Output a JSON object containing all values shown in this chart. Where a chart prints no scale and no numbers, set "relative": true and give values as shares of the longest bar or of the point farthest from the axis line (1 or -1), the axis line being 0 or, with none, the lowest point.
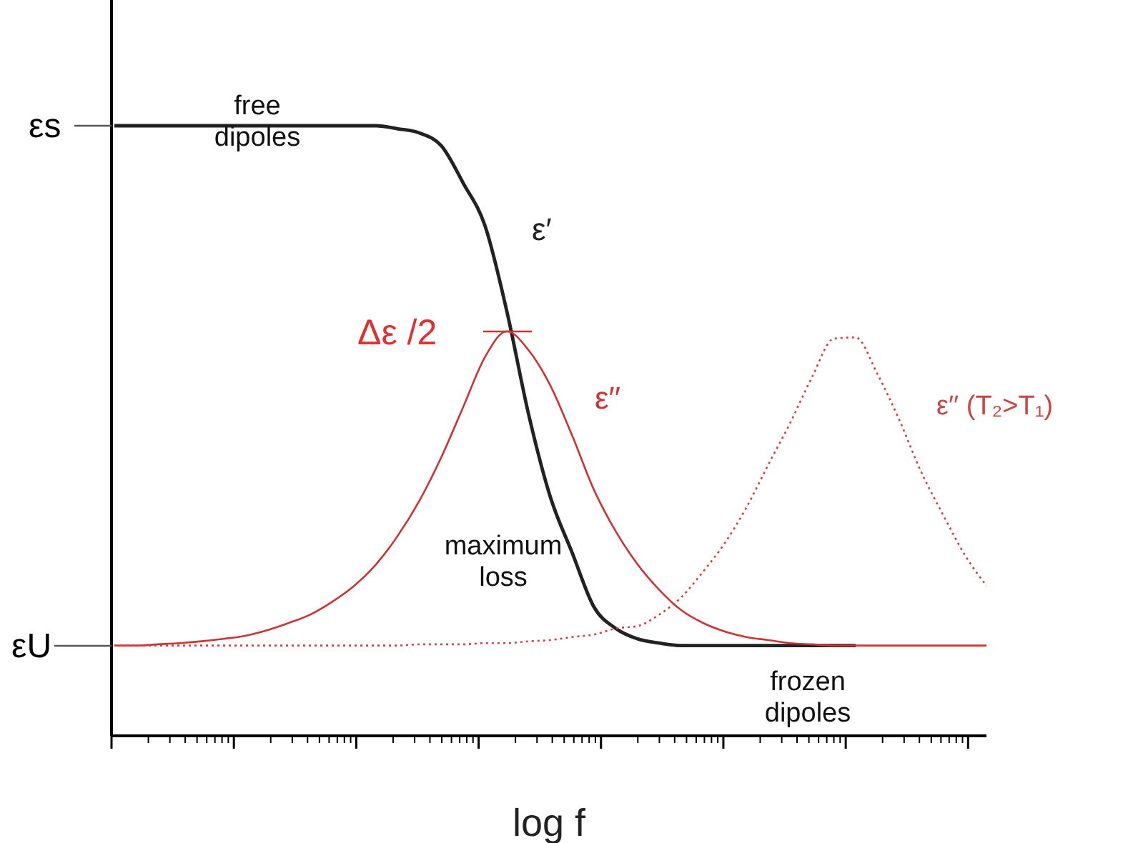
{
  "chart_data": {
    "type": "line",
    "relative": true,
    "xlabel": "log f",
    "categories": [
      null,
      null,
      null,
      null,
      null,
      null,
      null,
      null,
      null,
      null,
      null,
      null,
      null,
      null,
      null,
      null,
      null,
      null,
      null,
      null,
      null,
      null,
      null,
      null,
      null,
      null,
      null,
      null,
      null,
      null,
      null,
      null,
      null,
      null,
      null,
      null,
      null,
      null,
      null,
      null,
      null
    ],
    "series": [
      {
        "name": "ε′",
        "color": "#222222",
        "line_style": "solid",
        "values": [
          1,
          1,
          1,
          1,
          1,
          1,
          1,
          1,
          1,
          1,
          1,
          1,
          1,
          0.995,
          0.988,
          0.967,
          0.906,
          0.836,
          0.696,
          0.527,
          0.391,
          0.3,
          0.211,
          0.176,
          0.159,
          0.152,
          0.148,
          0.148,
          0.148,
          0.148,
          0.148,
          0.148,
          0.148,
          0.148,
          0.148,
          null,
          null,
          null,
          null,
          null,
          null
        ]
      },
      {
        "name": "ε′′",
        "color": "#cc3333",
        "line_style": "solid",
        "values": [
          0.148,
          0.148,
          0.15,
          0.152,
          0.155,
          0.159,
          0.164,
          0.173,
          0.185,
          0.199,
          0.22,
          0.246,
          0.281,
          0.328,
          0.386,
          0.457,
          0.539,
          0.621,
          0.663,
          0.632,
          0.574,
          0.492,
          0.403,
          0.335,
          0.281,
          0.239,
          0.206,
          0.185,
          0.171,
          0.162,
          0.157,
          0.152,
          0.15,
          0.148,
          0.148,
          0.148,
          0.148,
          0.148,
          0.148,
          0.148,
          0.148
        ]
      },
      {
        "name": "ε′′ (T₂>T₁)",
        "color": "#cc4444",
        "line_style": "dotted",
        "values": [
          0.148,
          0.148,
          0.148,
          0.148,
          0.148,
          0.148,
          0.148,
          0.148,
          0.148,
          0.148,
          0.148,
          0.148,
          0.148,
          0.148,
          0.15,
          0.15,
          0.15,
          0.152,
          0.152,
          0.155,
          0.157,
          0.162,
          0.166,
          0.176,
          0.18,
          0.199,
          0.227,
          0.269,
          0.316,
          0.375,
          0.445,
          0.513,
          0.588,
          0.651,
          0.653,
          0.593,
          0.518,
          0.433,
          0.363,
          0.297,
          0.246
        ]
      }
    ],
    "annotations": [
      "εs",
      "εU",
      "Δε /2",
      "free dipoles",
      "maximum loss",
      "frozen dipoles"
    ]
  }
}
